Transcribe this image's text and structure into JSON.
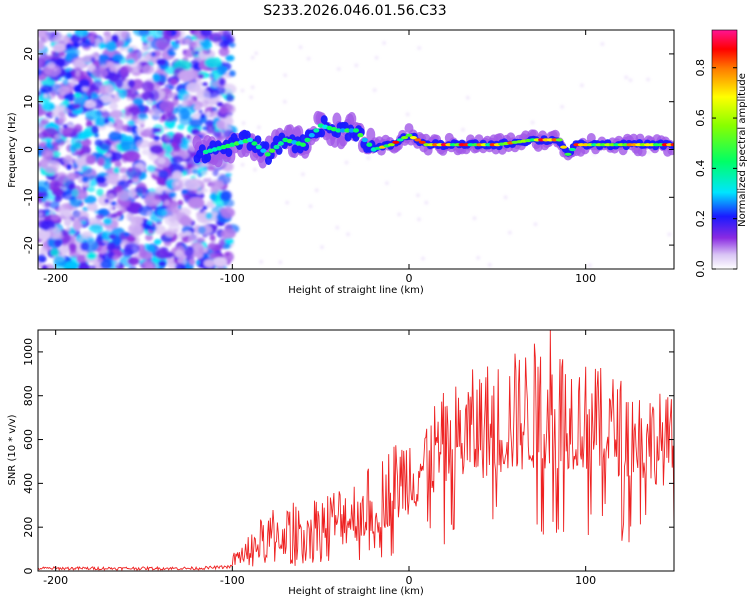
{
  "title": "S233.2026.046.01.56.C33",
  "chart_data": [
    {
      "type": "heatmap",
      "xlabel": "Height of straight line (km)",
      "ylabel": "Frequency (Hz)",
      "xlim": [
        -210,
        150
      ],
      "ylim": [
        -25,
        25
      ],
      "xticks": [
        -200,
        -100,
        0,
        100
      ],
      "xtick_labels": [
        "-200",
        "-100",
        "0",
        "100"
      ],
      "yticks": [
        -20,
        -10,
        0,
        10,
        20
      ],
      "ytick_labels": [
        "-20",
        "-10",
        "0",
        "10",
        "20"
      ],
      "colorbar": {
        "label": "Normalized spectral amplitude",
        "range": [
          0,
          0.95
        ],
        "ticks": [
          0.0,
          0.2,
          0.4,
          0.6,
          0.8
        ],
        "tick_labels": [
          "0.0",
          "0.2",
          "0.4",
          "0.6",
          "0.8"
        ]
      },
      "regions": {
        "noise": {
          "x": [
            -210,
            -100
          ],
          "y": [
            -25,
            25
          ],
          "amplitude": [
            0.05,
            0.35
          ]
        },
        "signal_onset": {
          "x": -120
        },
        "ridge": [
          {
            "x": -120,
            "y": -1
          },
          {
            "x": -100,
            "y": 1
          },
          {
            "x": -90,
            "y": 2
          },
          {
            "x": -80,
            "y": -1
          },
          {
            "x": -70,
            "y": 2
          },
          {
            "x": -60,
            "y": 1
          },
          {
            "x": -50,
            "y": 5
          },
          {
            "x": -40,
            "y": 4
          },
          {
            "x": -30,
            "y": 4
          },
          {
            "x": -20,
            "y": 0
          },
          {
            "x": -10,
            "y": 1
          },
          {
            "x": 0,
            "y": 3
          },
          {
            "x": 10,
            "y": 1
          },
          {
            "x": 30,
            "y": 1
          },
          {
            "x": 50,
            "y": 1
          },
          {
            "x": 70,
            "y": 2
          },
          {
            "x": 85,
            "y": 2
          },
          {
            "x": 90,
            "y": -1
          },
          {
            "x": 95,
            "y": 1
          },
          {
            "x": 120,
            "y": 1
          },
          {
            "x": 150,
            "y": 1
          }
        ]
      }
    },
    {
      "type": "line",
      "xlabel": "Height of straight line (km)",
      "ylabel": "SNR (10 * v/v)",
      "xlim": [
        -210,
        150
      ],
      "ylim": [
        0,
        1100
      ],
      "xticks": [
        -200,
        -100,
        0,
        100
      ],
      "xtick_labels": [
        "-200",
        "-100",
        "0",
        "100"
      ],
      "yticks": [
        0,
        200,
        400,
        600,
        800,
        1000
      ],
      "ytick_labels": [
        "0",
        "200",
        "400",
        "600",
        "800",
        "1000"
      ],
      "color": "#ee2222",
      "envelope": [
        {
          "x": -210,
          "base": 12,
          "amp": 20
        },
        {
          "x": -120,
          "base": 12,
          "amp": 25
        },
        {
          "x": -100,
          "base": 20,
          "amp": 60
        },
        {
          "x": -80,
          "base": 60,
          "amp": 220
        },
        {
          "x": -60,
          "base": 80,
          "amp": 250
        },
        {
          "x": -40,
          "base": 110,
          "amp": 290
        },
        {
          "x": -20,
          "base": 160,
          "amp": 330
        },
        {
          "x": 0,
          "base": 260,
          "amp": 420
        },
        {
          "x": 20,
          "base": 380,
          "amp": 440
        },
        {
          "x": 40,
          "base": 420,
          "amp": 530
        },
        {
          "x": 60,
          "base": 450,
          "amp": 560
        },
        {
          "x": 80,
          "base": 470,
          "amp": 620
        },
        {
          "x": 100,
          "base": 460,
          "amp": 500
        },
        {
          "x": 120,
          "base": 430,
          "amp": 460
        },
        {
          "x": 150,
          "base": 380,
          "amp": 420
        }
      ],
      "peak": {
        "x": 80,
        "y": 1100
      }
    }
  ]
}
